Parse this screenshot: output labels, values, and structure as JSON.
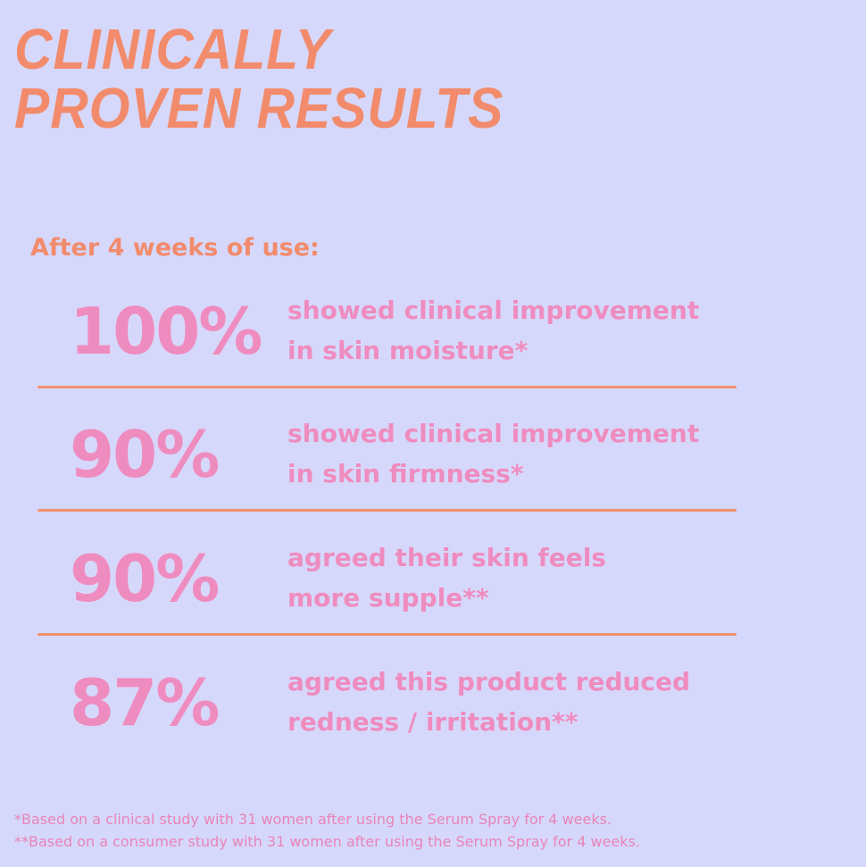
{
  "title": {
    "lines": [
      "CLINICALLY",
      "PROVEN RESULTS"
    ]
  },
  "subtitle": "After 4 weeks of use:",
  "stats": [
    {
      "value": "100%",
      "lines": [
        "showed clinical improvement",
        "in skin moisture*"
      ]
    },
    {
      "value": "90%",
      "lines": [
        "showed clinical improvement",
        "in skin firmness*"
      ]
    },
    {
      "value": "90%",
      "lines": [
        "agreed their skin feels",
        "more supple**"
      ]
    },
    {
      "value": "87%",
      "lines": [
        "agreed this product reduced",
        "redness / irritation**"
      ]
    }
  ],
  "footnotes": [
    "*Based on a clinical study with 31 women after using the Serum Spray for 4 weeks.",
    "**Based on a consumer study with 31 women after using the Serum Spray for 4 weeks."
  ]
}
